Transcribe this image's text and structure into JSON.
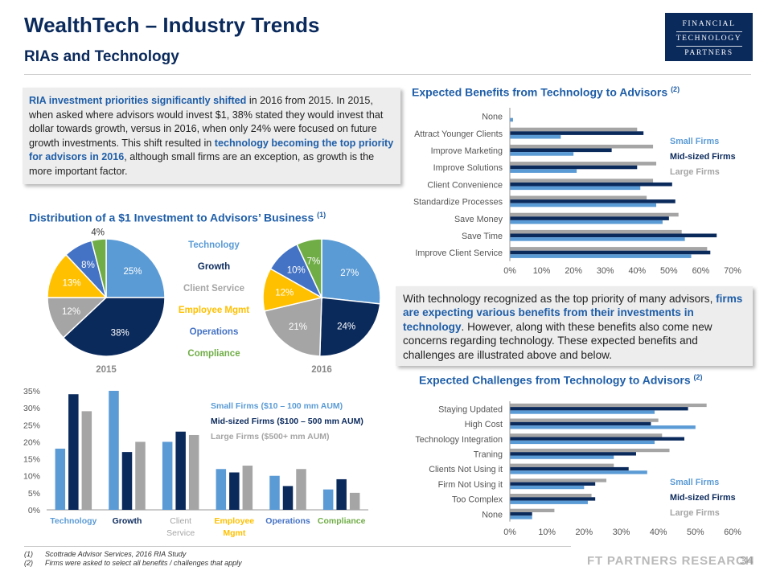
{
  "header": {
    "title": "WealthTech – Industry Trends",
    "subtitle": "RIAs and Technology",
    "logo_lines": [
      "FINANCIAL",
      "TECHNOLOGY",
      "PARTNERS"
    ]
  },
  "callout1": {
    "parts": [
      {
        "t": "RIA investment priorities significantly shifted",
        "hl": true
      },
      {
        "t": " in 2016 from 2015. In 2015, when asked where advisors would invest $1, 38% stated they would invest that dollar towards growth, versus in 2016, when only 24% were focused on future growth investments. This shift resulted in ",
        "hl": false
      },
      {
        "t": "technology becoming the top priority for advisors in 2016",
        "hl": true
      },
      {
        "t": ", although small firms are an exception, as growth is the more important factor.",
        "hl": false
      }
    ]
  },
  "callout2": {
    "parts": [
      {
        "t": "With technology recognized as the top priority of many advisors, ",
        "hl": false
      },
      {
        "t": "firms are expecting various benefits from their investments in technology",
        "hl": true
      },
      {
        "t": ". However, along with these benefits also come new concerns regarding technology. These expected benefits and challenges are illustrated above and below.",
        "hl": false
      }
    ]
  },
  "sections": {
    "distribution": {
      "label": "Distribution of a $1 Investment to Advisors’ Business",
      "note": "(1)"
    },
    "benefits": {
      "label": "Expected Benefits from Technology to Advisors",
      "note": "(2)"
    },
    "challenges": {
      "label": "Expected Challenges from Technology to Advisors",
      "note": "(2)"
    }
  },
  "colors": {
    "technology": "#5b9bd5",
    "growth": "#0b2a5c",
    "client_service": "#a5a5a5",
    "employee_mgmt": "#ffc000",
    "operations": "#4472c4",
    "compliance": "#70ad47",
    "small": "#5b9bd5",
    "mid": "#0b2a5c",
    "large": "#a5a5a5"
  },
  "chart_data": [
    {
      "id": "pie2015",
      "type": "pie",
      "title": "2015",
      "slices": [
        {
          "label": "Technology",
          "value": 25
        },
        {
          "label": "Growth",
          "value": 38
        },
        {
          "label": "Client Service",
          "value": 12
        },
        {
          "label": "Employee Mgmt",
          "value": 13
        },
        {
          "label": "Operations",
          "value": 8
        },
        {
          "label": "Compliance",
          "value": 4
        }
      ]
    },
    {
      "id": "pie2016",
      "type": "pie",
      "title": "2016",
      "slices": [
        {
          "label": "Technology",
          "value": 27
        },
        {
          "label": "Growth",
          "value": 24
        },
        {
          "label": "Client Service",
          "value": 21
        },
        {
          "label": "Employee Mgmt",
          "value": 12
        },
        {
          "label": "Operations",
          "value": 10
        },
        {
          "label": "Compliance",
          "value": 7
        }
      ]
    },
    {
      "id": "firmbars",
      "type": "bar",
      "categories": [
        "Technology",
        "Growth",
        "Client Service",
        "Employee Mgmt",
        "Operations",
        "Compliance"
      ],
      "series": [
        {
          "name": "Small Firms ($10 – 100 mm AUM)",
          "values": [
            18,
            35,
            20,
            12,
            10,
            6
          ]
        },
        {
          "name": "Mid-sized Firms ($100 – 500 mm AUM)",
          "values": [
            34,
            17,
            23,
            11,
            7,
            9
          ]
        },
        {
          "name": "Large Firms ($500+ mm AUM)",
          "values": [
            29,
            20,
            22,
            13,
            12,
            5
          ]
        }
      ],
      "ylim": [
        0,
        35
      ],
      "yticks": [
        "0%",
        "5%",
        "10%",
        "15%",
        "20%",
        "25%",
        "30%",
        "35%"
      ]
    },
    {
      "id": "benefits",
      "type": "bar",
      "orientation": "horizontal",
      "categories": [
        "None",
        "Attract Younger Clients",
        "Improve Marketing",
        "Improve Solutions",
        "Client Convenience",
        "Standardize Processes",
        "Save Money",
        "Save Time",
        "Improve Client Service"
      ],
      "series": [
        {
          "name": "Small Firms",
          "values": [
            1,
            16,
            20,
            21,
            41,
            46,
            48,
            55,
            57
          ]
        },
        {
          "name": "Mid-sized Firms",
          "values": [
            0,
            42,
            32,
            40,
            51,
            52,
            50,
            65,
            63
          ]
        },
        {
          "name": "Large Firms",
          "values": [
            0,
            40,
            45,
            46,
            45,
            43,
            53,
            54,
            62
          ]
        }
      ],
      "xlim": [
        0,
        70
      ],
      "xticks": [
        "0%",
        "10%",
        "20%",
        "30%",
        "40%",
        "50%",
        "60%",
        "70%"
      ]
    },
    {
      "id": "challenges",
      "type": "bar",
      "orientation": "horizontal",
      "categories": [
        "Staying Updated",
        "High Cost",
        "Technology Integration",
        "Traning",
        "Clients Not Using it",
        "Firm Not Using it",
        "Too Complex",
        "None"
      ],
      "series": [
        {
          "name": "Small Firms",
          "values": [
            39,
            50,
            39,
            28,
            37,
            20,
            21,
            6
          ]
        },
        {
          "name": "Mid-sized Firms",
          "values": [
            48,
            38,
            47,
            34,
            32,
            23,
            23,
            6
          ]
        },
        {
          "name": "Large Firms",
          "values": [
            53,
            40,
            41,
            43,
            28,
            26,
            22,
            12
          ]
        }
      ],
      "xlim": [
        0,
        60
      ],
      "xticks": [
        "0%",
        "10%",
        "20%",
        "30%",
        "40%",
        "50%",
        "60%"
      ]
    }
  ],
  "footnotes": [
    {
      "n": "(1)",
      "text": "Scottrade Advisor Services, 2016 RIA Study"
    },
    {
      "n": "(2)",
      "text": "Firms were asked to select all benefits / challenges that apply"
    }
  ],
  "footer": {
    "brand": "FT PARTNERS RESEARCH",
    "page": "34"
  }
}
